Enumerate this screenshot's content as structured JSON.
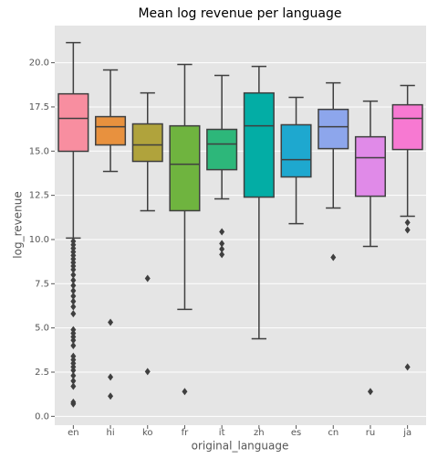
{
  "chart_data": {
    "type": "box",
    "title": "Mean log revenue per language",
    "x_label": "original_language",
    "y_label": "log_revenue",
    "categories": [
      "en",
      "hi",
      "ko",
      "fr",
      "it",
      "zh",
      "es",
      "cn",
      "ru",
      "ja"
    ],
    "colors": [
      "#f88ea0",
      "#e8913e",
      "#b0a33c",
      "#6fb43f",
      "#2db77a",
      "#03ada5",
      "#1ea8cf",
      "#8da6ec",
      "#e08ae8",
      "#f779d2"
    ],
    "boxes": [
      {
        "whislo": 10.08,
        "q1": 14.99,
        "med": 16.85,
        "q3": 18.24,
        "whishi": 21.14,
        "fliers": [
          9.9,
          9.7,
          9.5,
          9.3,
          9.1,
          8.9,
          8.7,
          8.5,
          8.3,
          8.0,
          7.7,
          7.4,
          7.1,
          6.8,
          6.5,
          6.2,
          5.8,
          4.9,
          4.7,
          4.5,
          4.3,
          4.0,
          3.4,
          3.2,
          3.0,
          2.8,
          2.6,
          2.3,
          2.0,
          1.7,
          0.8,
          0.7
        ]
      },
      {
        "whislo": 13.85,
        "q1": 15.35,
        "med": 16.38,
        "q3": 16.95,
        "whishi": 19.59,
        "fliers": [
          5.32,
          2.22,
          1.14
        ]
      },
      {
        "whislo": 11.63,
        "q1": 14.42,
        "med": 15.35,
        "q3": 16.54,
        "whishi": 18.29,
        "fliers": [
          7.8,
          2.53
        ]
      },
      {
        "whislo": 6.05,
        "q1": 11.63,
        "med": 14.26,
        "q3": 16.43,
        "whishi": 19.9,
        "fliers": [
          1.4
        ]
      },
      {
        "whislo": 12.3,
        "q1": 13.95,
        "med": 15.4,
        "q3": 16.23,
        "whishi": 19.28,
        "fliers": [
          10.44,
          9.77,
          9.46,
          9.15
        ]
      },
      {
        "whislo": 4.39,
        "q1": 12.4,
        "med": 16.43,
        "q3": 18.29,
        "whishi": 19.79,
        "fliers": []
      },
      {
        "whislo": 10.9,
        "q1": 13.54,
        "med": 14.52,
        "q3": 16.49,
        "whishi": 18.04,
        "fliers": []
      },
      {
        "whislo": 11.78,
        "q1": 15.14,
        "med": 16.38,
        "q3": 17.36,
        "whishi": 18.86,
        "fliers": [
          8.99
        ]
      },
      {
        "whislo": 9.61,
        "q1": 12.45,
        "med": 14.63,
        "q3": 15.81,
        "whishi": 17.83,
        "fliers": [
          1.4
        ]
      },
      {
        "whislo": 11.32,
        "q1": 15.09,
        "med": 16.85,
        "q3": 17.62,
        "whishi": 18.71,
        "fliers": [
          10.96,
          10.54,
          2.79
        ]
      }
    ],
    "ylim": [
      -0.5,
      22.1
    ],
    "yticks": [
      {
        "value": 0,
        "label": "0.0"
      },
      2.5,
      {
        "value": 5,
        "label": "5.0"
      },
      7.5,
      {
        "value": 10,
        "label": "10.0"
      },
      12.5,
      {
        "value": 15,
        "label": "15.0"
      },
      17.5,
      {
        "value": 20,
        "label": "20.0"
      }
    ],
    "grid": true
  }
}
